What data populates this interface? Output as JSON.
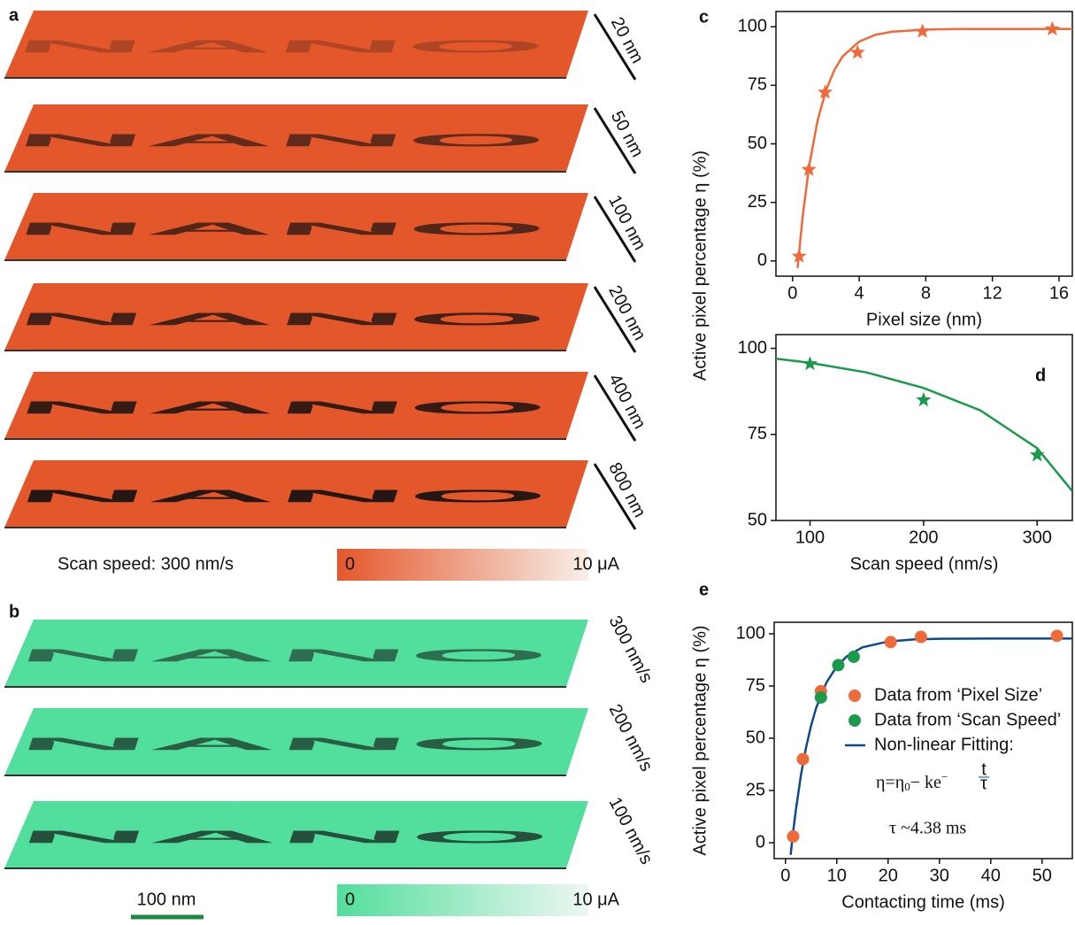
{
  "panel_labels": [
    "a",
    "b",
    "c",
    "d",
    "e"
  ],
  "image_a": {
    "pattern": "NANO",
    "color": "#e4572b",
    "labels": [
      "20 nm",
      "50 nm",
      "100 nm",
      "200 nm",
      "400 nm",
      "800 nm"
    ],
    "caption": "Scan speed: 300 nm/s",
    "colorbar": {
      "min": "0",
      "max": "10 μA"
    }
  },
  "image_b": {
    "pattern": "NANO",
    "color": "#52de9c",
    "labels": [
      "300 nm/s",
      "200 nm/s",
      "100 nm/s"
    ],
    "scalebar": "100 nm",
    "colorbar": {
      "min": "0",
      "max": "10 μA"
    }
  },
  "ylabel_cd": "Active pixel percentage η (%)",
  "chart_data": [
    {
      "type": "line",
      "xlabel": "Pixel size (nm)",
      "xlim": [
        -1,
        16.8
      ],
      "xticks": [
        0,
        4,
        8,
        12,
        16
      ],
      "ylim": [
        -6.5,
        106.5
      ],
      "yticks": [
        0,
        25,
        50,
        75,
        100
      ],
      "series": [
        {
          "color": "#ee6a3a",
          "marker": "star",
          "x": [
            0.39,
            0.98,
            1.95,
            3.9,
            7.8,
            15.6
          ],
          "values": [
            2,
            39,
            72,
            89,
            98,
            99
          ]
        },
        {
          "color": "#ee6a3a",
          "marker": "line",
          "x": [
            0.3,
            0.6,
            1,
            1.5,
            2,
            2.5,
            3,
            4,
            5,
            6,
            8,
            10,
            16.8
          ],
          "values": [
            -3,
            18.7,
            40.7,
            60,
            72.8,
            81.4,
            87.3,
            93.7,
            96.6,
            97.9,
            98.8,
            99,
            99
          ]
        }
      ]
    },
    {
      "type": "line",
      "xlabel": "Scan speed (nm/s)",
      "xlim": [
        70,
        331
      ],
      "xticks": [
        100,
        200,
        300
      ],
      "ylim": [
        50,
        104
      ],
      "yticks": [
        50,
        75,
        100
      ],
      "series": [
        {
          "color": "#1c9a4c",
          "marker": "star",
          "x": [
            100,
            200,
            300
          ],
          "values": [
            95.5,
            85,
            69
          ]
        },
        {
          "color": "#1c9a4c",
          "marker": "line",
          "x": [
            70,
            100,
            150,
            200,
            250,
            300,
            331
          ],
          "values": [
            97,
            95.8,
            93,
            88.5,
            82,
            71,
            58.5
          ]
        }
      ]
    },
    {
      "type": "line",
      "ylabel": "Active pixel percentage η (%)",
      "xlabel": "Contacting time (ms)",
      "xlim": [
        -2.2,
        55.9
      ],
      "xticks": [
        0,
        10,
        20,
        30,
        40,
        50
      ],
      "ylim": [
        -7.6,
        105.5
      ],
      "yticks": [
        0,
        25,
        50,
        75,
        100
      ],
      "series": [
        {
          "name": "Data from ‘Pixel Size’",
          "color": "#ee6a3a",
          "marker": "circle",
          "x": [
            1.5,
            3.4,
            6.9,
            20.5,
            26.4,
            52.9
          ],
          "values": [
            3,
            40,
            72.5,
            96,
            98.5,
            99
          ]
        },
        {
          "name": "Data from ‘Scan Speed’",
          "color": "#1c9a4c",
          "marker": "circle",
          "x": [
            6.9,
            10.3,
            13.3
          ],
          "values": [
            69.5,
            85,
            89
          ]
        },
        {
          "name": "Non-linear Fitting:",
          "color": "#14478a",
          "marker": "line",
          "x": [
            1,
            1.5,
            2,
            3,
            4,
            5,
            6,
            8,
            10,
            12,
            15,
            20,
            25,
            30,
            40,
            55.9
          ],
          "values": [
            -5.8,
            5.4,
            15.3,
            32.2,
            45.5,
            56.2,
            64.7,
            76.8,
            84.4,
            89.3,
            93.5,
            96.3,
            97.3,
            97.6,
            97.7,
            97.7
          ]
        }
      ],
      "formula": {
        "lhs": "η=η",
        "sub": "0",
        "rest": "− ke",
        "exp": "−",
        "num": "t",
        "den": "τ"
      },
      "annotation": "τ ~4.38 ms"
    }
  ]
}
